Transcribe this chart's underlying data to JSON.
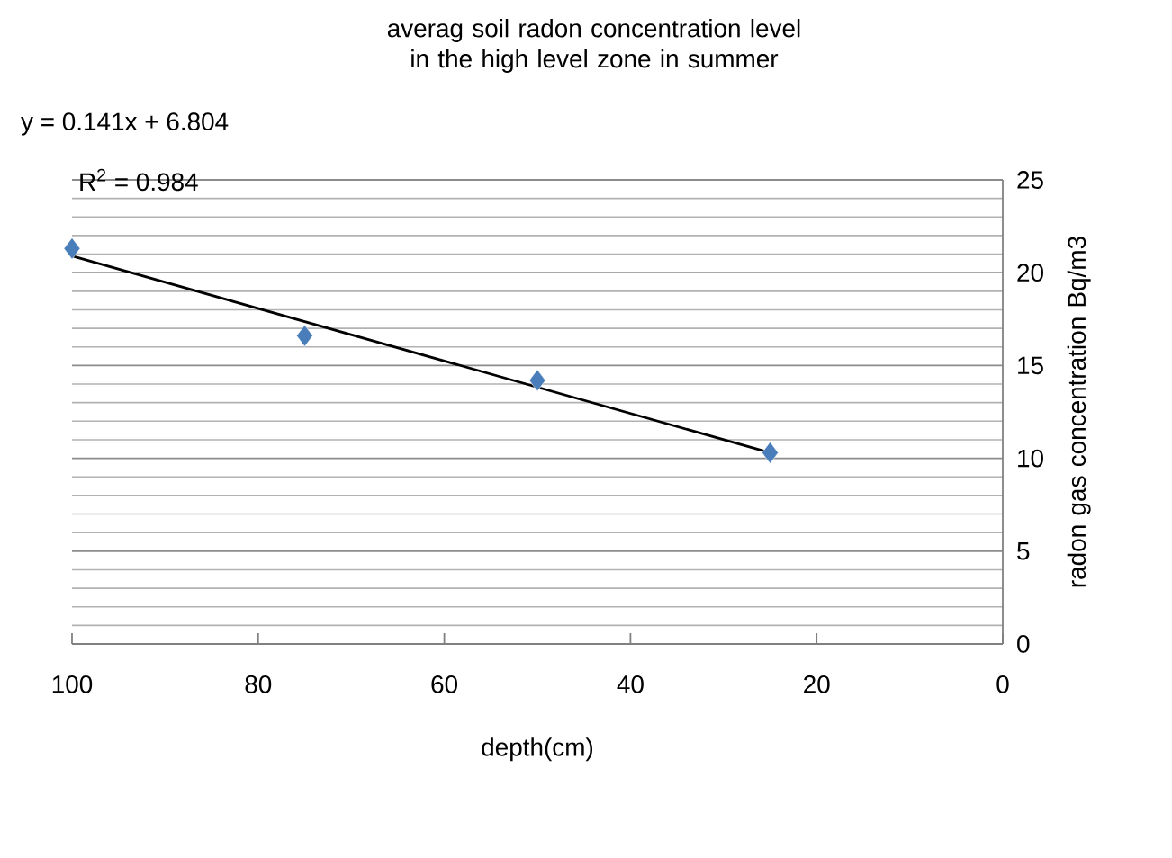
{
  "chart_data": {
    "type": "scatter",
    "title": "averag soil radon concentration level in the high level zone in summer",
    "xlabel": "depth(cm)",
    "ylabel": "radon gas concentration Bq/m3",
    "annotations": [
      "y = 0.141x + 6.804",
      "R$^{2}$ = 0.984"
    ],
    "series": [
      {
        "type": "scatter",
        "color": "#4a7ebb",
        "x": [
          100,
          75,
          50,
          25
        ],
        "values": [
          21.3,
          16.6,
          14.2,
          10.3
        ],
        "marker": "diamond"
      },
      {
        "type": "line",
        "color": "#000000",
        "x": [
          100,
          25
        ],
        "values": [
          20.9,
          10.3
        ],
        "marker": "none",
        "line_style": "solid"
      }
    ],
    "xlim": [
      100,
      0
    ],
    "xticks": [
      100,
      80,
      60,
      40,
      20,
      0
    ],
    "ylim": [
      0,
      25
    ],
    "yticks": [
      0,
      5,
      10,
      15,
      20,
      25
    ],
    "grid": "y"
  }
}
